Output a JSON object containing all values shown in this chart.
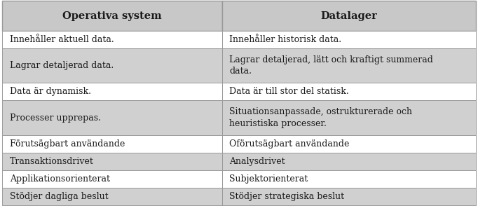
{
  "col1_header": "Operativa system",
  "col2_header": "Datalager",
  "rows": [
    {
      "col1": "Innehåller aktuell data.",
      "col2": "Innehåller historisk data.",
      "shaded": false
    },
    {
      "col1": "Lagrar detaljerad data.",
      "col2": "Lagrar detaljerad, lätt och kraftigt summerad\ndata.",
      "shaded": true
    },
    {
      "col1": "Data är dynamisk.",
      "col2": "Data är till stor del statisk.",
      "shaded": false
    },
    {
      "col1": "Processer upprepas.",
      "col2": "Situationsanpassade, ostrukturerade och\nheuristiska processer.",
      "shaded": true
    },
    {
      "col1": "Förutsägbart användande",
      "col2": "Oförutsägbart användande",
      "shaded": false
    },
    {
      "col1": "Transaktionsdrivet",
      "col2": "Analysdrivet",
      "shaded": true
    },
    {
      "col1": "Applikationsorienterat",
      "col2": "Subjektorienterat",
      "shaded": false
    },
    {
      "col1": "Stödjer dagliga beslut",
      "col2": "Stödjer strategiska beslut",
      "shaded": true
    }
  ],
  "header_bg": "#c8c8c8",
  "shaded_bg": "#d0d0d0",
  "white_bg": "#ffffff",
  "outer_bg": "#ffffff",
  "border_color": "#999999",
  "text_color": "#1a1a1a",
  "header_fontsize": 10.5,
  "cell_fontsize": 9.0,
  "figsize": [
    6.82,
    2.94
  ],
  "dpi": 100,
  "col_split": 0.465
}
